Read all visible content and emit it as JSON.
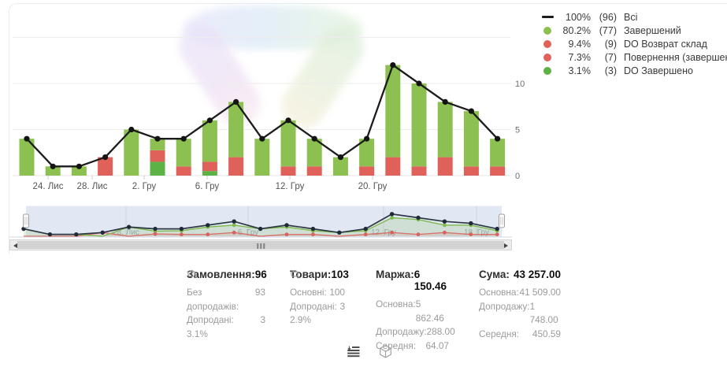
{
  "colors": {
    "green": "#8CC152",
    "dark_green": "#5CB244",
    "red": "#E0605A",
    "line": "#1C1C1C",
    "nav_black": "#2C3844",
    "nav_green": "#7FBA4C",
    "nav_red": "#D9625D",
    "grid": "#ededed",
    "axis_text": "#6e6e6e",
    "nav_text": "#99a2b5",
    "selection_fill": "rgba(195,208,232,0.5)"
  },
  "legend": {
    "items": [
      {
        "marker": "line",
        "color_key": "line",
        "pct": "100%",
        "count": "(96)",
        "label": "Всі"
      },
      {
        "marker": "circle",
        "color_key": "green",
        "pct": "80.2%",
        "count": "(77)",
        "label": "Завершений"
      },
      {
        "marker": "circle",
        "color_key": "red",
        "pct": "9.4%",
        "count": "(9)",
        "label": "DO Возврат склад"
      },
      {
        "marker": "circle",
        "color_key": "red",
        "pct": "7.3%",
        "count": "(7)",
        "label": "Повернення (завершений)"
      },
      {
        "marker": "circle",
        "color_key": "dark_green",
        "pct": "3.1%",
        "count": "(3)",
        "label": "DO Завершено"
      }
    ]
  },
  "chart_data": [
    {
      "type": "bar",
      "role": "main",
      "stacked": true,
      "grid": "horizontal",
      "ylim": [
        0,
        15.5
      ],
      "y_ticks": [
        {
          "value": 0,
          "label": "0"
        },
        {
          "value": 5,
          "label": "5"
        },
        {
          "value": 10,
          "label": "10"
        },
        {
          "value": 15,
          "label": ""
        }
      ],
      "x_tick_labels": [
        {
          "text": "24. Лис",
          "x": 61
        },
        {
          "text": "28. Лис",
          "x": 117
        },
        {
          "text": "2. Гру",
          "x": 183
        },
        {
          "text": "6. Гру",
          "x": 263
        },
        {
          "text": "12. Гру",
          "x": 368
        },
        {
          "text": "20. Гру",
          "x": 473
        }
      ],
      "bars": [
        {
          "total": 4,
          "segments": [
            [
              "green",
              4
            ]
          ]
        },
        {
          "total": 1,
          "segments": [
            [
              "green",
              1
            ]
          ]
        },
        {
          "total": 1,
          "segments": [
            [
              "green",
              1
            ]
          ]
        },
        {
          "total": 2,
          "segments": [
            [
              "red",
              2
            ]
          ]
        },
        {
          "total": 5,
          "segments": [
            [
              "green",
              5
            ]
          ]
        },
        {
          "total": 4,
          "segments": [
            [
              "dark_green",
              1.5
            ],
            [
              "red",
              1.25
            ],
            [
              "green",
              1.25
            ]
          ]
        },
        {
          "total": 4,
          "segments": [
            [
              "red",
              1
            ],
            [
              "green",
              3
            ]
          ]
        },
        {
          "total": 6,
          "segments": [
            [
              "dark_green",
              0.5
            ],
            [
              "red",
              1
            ],
            [
              "green",
              4.5
            ]
          ]
        },
        {
          "total": 8,
          "segments": [
            [
              "red",
              2
            ],
            [
              "green",
              6
            ]
          ]
        },
        {
          "total": 4,
          "segments": [
            [
              "green",
              4
            ]
          ]
        },
        {
          "total": 6,
          "segments": [
            [
              "red",
              1
            ],
            [
              "green",
              5
            ]
          ]
        },
        {
          "total": 4,
          "segments": [
            [
              "red",
              1
            ],
            [
              "green",
              3
            ]
          ]
        },
        {
          "total": 2,
          "segments": [
            [
              "green",
              2
            ]
          ]
        },
        {
          "total": 4,
          "segments": [
            [
              "red",
              1
            ],
            [
              "green",
              3
            ]
          ]
        },
        {
          "total": 12,
          "segments": [
            [
              "red",
              2
            ],
            [
              "green",
              10
            ]
          ]
        },
        {
          "total": 10,
          "segments": [
            [
              "red",
              1
            ],
            [
              "green",
              9
            ]
          ]
        },
        {
          "total": 8,
          "segments": [
            [
              "red",
              2
            ],
            [
              "green",
              6
            ]
          ]
        },
        {
          "total": 7,
          "segments": [
            [
              "red",
              1
            ],
            [
              "green",
              6
            ]
          ]
        },
        {
          "total": 4,
          "segments": [
            [
              "red",
              1
            ],
            [
              "green",
              3
            ]
          ]
        }
      ],
      "line_series": {
        "name": "Всі",
        "values": [
          4,
          1,
          1,
          2,
          5,
          4,
          4,
          6,
          8,
          4,
          6,
          4,
          2,
          4,
          12,
          10,
          8,
          7,
          4
        ]
      }
    },
    {
      "type": "line",
      "role": "navigator",
      "x_tick_labels": [
        {
          "text": "28. Лис",
          "x": 160
        },
        {
          "text": "6. Гру",
          "x": 315
        },
        {
          "text": "12. Гру",
          "x": 487
        },
        {
          "text": "18. Гру",
          "x": 605
        }
      ],
      "series": [
        {
          "name": "Всі",
          "color_key": "nav_black",
          "values": [
            4,
            1,
            1,
            2,
            5,
            4,
            4,
            6,
            8,
            4,
            6,
            4,
            2,
            4,
            12,
            10,
            8,
            7,
            4
          ]
        },
        {
          "name": "Завершений",
          "color_key": "nav_green",
          "values": [
            4,
            1,
            1,
            0,
            5,
            2.75,
            3,
            5,
            6,
            4,
            5,
            3,
            2,
            3,
            10,
            9,
            6,
            6,
            3
          ]
        },
        {
          "name": "Повернення",
          "color_key": "nav_red",
          "values": [
            0,
            0,
            0,
            2,
            0,
            1.25,
            1,
            1,
            2,
            0,
            1,
            1,
            0,
            1,
            2,
            1,
            2,
            1,
            1
          ]
        }
      ]
    }
  ],
  "stats": {
    "columns": [
      {
        "title": "Замовлення:",
        "value": "96",
        "rows": [
          [
            "Без допродажів:",
            "93"
          ],
          [
            "Допродані:",
            "3"
          ]
        ],
        "basket_pct": "3.1%"
      },
      {
        "title": "Товари:",
        "value": "103",
        "rows": [
          [
            "Основні:",
            "100"
          ],
          [
            "Допродані:",
            "3"
          ]
        ],
        "basket_pct": "2.9%"
      },
      {
        "title": "Маржа:",
        "value": "6 150.46",
        "rows": [
          [
            "Основна:",
            "5 862.46"
          ],
          [
            "Допродажу:",
            "288.00"
          ],
          [
            "Середня:",
            "64.07"
          ]
        ],
        "basket_pct": null
      },
      {
        "title": "Сума:",
        "value": "43 257.00",
        "rows": [
          [
            "Основна:",
            "41 509.00"
          ],
          [
            "Допродажу:",
            "1 748.00"
          ],
          [
            "Середня:",
            "450.59"
          ]
        ],
        "basket_pct": null
      }
    ]
  },
  "scrollbar": {
    "grip": "|||"
  }
}
